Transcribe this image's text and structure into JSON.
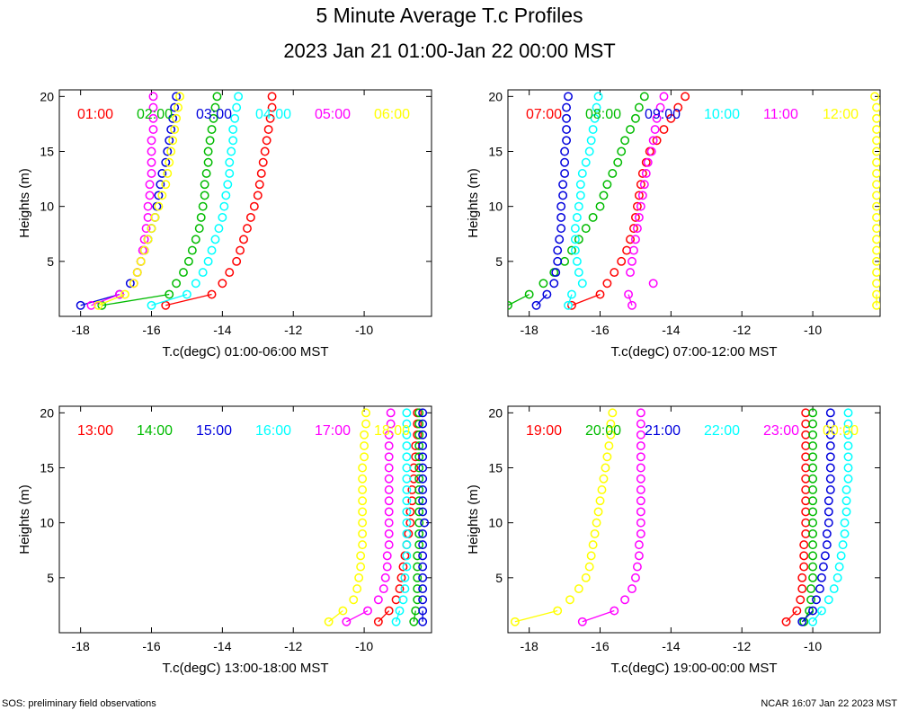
{
  "title": "5 Minute Average T.c Profiles",
  "subtitle": "2023 Jan 21 01:00-Jan 22 00:00 MST",
  "footer_left": "SOS: preliminary field observations",
  "footer_right": "NCAR 16:07 Jan 22 2023 MST",
  "colors": {
    "red": "#ff0000",
    "green": "#00bb00",
    "blue": "#0000dd",
    "cyan": "#00ffff",
    "magenta": "#ff00ff",
    "yellow": "#ffff00"
  },
  "chart_data": [
    {
      "type": "scatter",
      "xlabel": "T.c(degC) 01:00-06:00 MST",
      "ylabel": "Heights (m)",
      "xlim": [
        -18.6,
        -8.1
      ],
      "ylim": [
        0,
        20.6
      ],
      "xticks": [
        "-18",
        "-16",
        "-14",
        "-12",
        "-10"
      ],
      "yticks": [
        "5",
        "10",
        "15",
        "20"
      ],
      "heights": [
        1,
        2,
        3,
        4,
        5,
        6,
        7,
        8,
        9,
        10,
        11,
        12,
        13,
        14,
        15,
        16,
        17,
        18,
        19,
        20
      ],
      "series": [
        {
          "name": "01:00",
          "color": "red",
          "values": [
            -15.6,
            -14.3,
            -14.0,
            -13.8,
            -13.6,
            -13.5,
            -13.4,
            -13.3,
            -13.2,
            -13.1,
            -13.0,
            -12.95,
            -12.9,
            -12.85,
            -12.8,
            -12.75,
            -12.7,
            -12.65,
            -12.6,
            -12.6
          ]
        },
        {
          "name": "02:00",
          "color": "green",
          "values": [
            -17.4,
            -15.5,
            -15.3,
            -15.1,
            -14.95,
            -14.85,
            -14.75,
            -14.65,
            -14.6,
            -14.55,
            -14.5,
            -14.5,
            -14.45,
            -14.4,
            -14.4,
            -14.35,
            -14.3,
            -14.25,
            -14.2,
            -14.15
          ]
        },
        {
          "name": "03:00",
          "color": "blue",
          "values": [
            -18.0,
            -16.9,
            -16.6,
            -16.4,
            -16.3,
            -16.2,
            -16.1,
            -16.0,
            -15.9,
            -15.85,
            -15.8,
            -15.75,
            -15.7,
            -15.6,
            -15.55,
            -15.5,
            -15.45,
            -15.4,
            -15.35,
            -15.3
          ]
        },
        {
          "name": "04:00",
          "color": "cyan",
          "values": [
            -16.0,
            -15.0,
            -14.75,
            -14.55,
            -14.4,
            -14.3,
            -14.2,
            -14.1,
            -14.0,
            -13.95,
            -13.9,
            -13.85,
            -13.8,
            -13.8,
            -13.75,
            -13.7,
            -13.7,
            -13.65,
            -13.6,
            -13.55
          ]
        },
        {
          "name": "05:00",
          "color": "magenta",
          "values": [
            -17.7,
            -16.9,
            -16.5,
            -16.4,
            -16.3,
            -16.25,
            -16.2,
            -16.15,
            -16.1,
            -16.1,
            -16.05,
            -16.05,
            -16.0,
            -16.0,
            -16.0,
            -16.0,
            -15.95,
            -15.95,
            -15.95,
            -15.95
          ]
        },
        {
          "name": "06:00",
          "color": "yellow",
          "values": [
            -17.5,
            -16.75,
            -16.5,
            -16.4,
            -16.3,
            -16.2,
            -16.1,
            -16.0,
            -15.9,
            -15.8,
            -15.7,
            -15.6,
            -15.55,
            -15.5,
            -15.45,
            -15.4,
            -15.35,
            -15.3,
            -15.25,
            -15.2
          ]
        }
      ]
    },
    {
      "type": "scatter",
      "xlabel": "T.c(degC) 07:00-12:00 MST",
      "ylabel": "Heights (m)",
      "xlim": [
        -18.6,
        -8.1
      ],
      "ylim": [
        0,
        20.6
      ],
      "xticks": [
        "-18",
        "-16",
        "-14",
        "-12",
        "-10"
      ],
      "yticks": [
        "5",
        "10",
        "15",
        "20"
      ],
      "heights": [
        1,
        2,
        3,
        4,
        5,
        6,
        7,
        8,
        9,
        10,
        11,
        12,
        13,
        14,
        15,
        16,
        17,
        18,
        19,
        20
      ],
      "series": [
        {
          "name": "07:00",
          "color": "red",
          "values": [
            -16.8,
            -16.0,
            -15.8,
            -15.6,
            -15.4,
            -15.25,
            -15.15,
            -15.05,
            -15.0,
            -14.95,
            -14.9,
            -14.85,
            -14.8,
            -14.7,
            -14.6,
            -14.4,
            -14.2,
            -14.0,
            -13.8,
            -13.6
          ]
        },
        {
          "name": "08:00",
          "color": "green",
          "values": [
            -18.6,
            -18.0,
            -17.6,
            -17.3,
            -17.0,
            -16.8,
            -16.6,
            -16.4,
            -16.2,
            -16.0,
            -15.9,
            -15.8,
            -15.65,
            -15.5,
            -15.4,
            -15.3,
            -15.15,
            -15.0,
            -14.9,
            -14.75
          ]
        },
        {
          "name": "09:00",
          "color": "blue",
          "values": [
            -17.8,
            -17.5,
            -17.3,
            -17.25,
            -17.2,
            -17.2,
            -17.15,
            -17.1,
            -17.1,
            -17.1,
            -17.05,
            -17.05,
            -17.0,
            -17.0,
            -17.0,
            -16.95,
            -16.95,
            -16.95,
            -16.95,
            -16.9
          ]
        },
        {
          "name": "10:00",
          "color": "cyan",
          "values": [
            -16.9,
            -16.8,
            -16.5,
            -16.6,
            -16.65,
            -16.7,
            -16.7,
            -16.7,
            -16.65,
            -16.6,
            -16.55,
            -16.55,
            -16.5,
            -16.4,
            -16.3,
            -16.25,
            -16.2,
            -16.15,
            -16.1,
            -16.05
          ]
        },
        {
          "name": "11:00",
          "color": "magenta",
          "values": [
            -15.1,
            -15.2,
            -14.5,
            -15.15,
            -15.1,
            -15.05,
            -15.0,
            -14.95,
            -14.9,
            -14.85,
            -14.8,
            -14.75,
            -14.7,
            -14.65,
            -14.55,
            -14.5,
            -14.45,
            -14.4,
            -14.3,
            -14.2
          ]
        },
        {
          "name": "12:00",
          "color": "yellow",
          "values": [
            -8.2,
            -8.2,
            -8.2,
            -8.2,
            -8.2,
            -8.2,
            -8.2,
            -8.2,
            -8.2,
            -8.2,
            -8.2,
            -8.2,
            -8.2,
            -8.2,
            -8.2,
            -8.2,
            -8.2,
            -8.2,
            -8.2,
            -8.25
          ]
        }
      ]
    },
    {
      "type": "scatter",
      "xlabel": "T.c(degC) 13:00-18:00 MST",
      "ylabel": "Heights (m)",
      "xlim": [
        -18.6,
        -8.1
      ],
      "ylim": [
        0,
        20.6
      ],
      "xticks": [
        "-18",
        "-16",
        "-14",
        "-12",
        "-10"
      ],
      "yticks": [
        "5",
        "10",
        "15",
        "20"
      ],
      "heights": [
        1,
        2,
        3,
        4,
        5,
        6,
        7,
        8,
        9,
        10,
        11,
        12,
        13,
        14,
        15,
        16,
        17,
        18,
        19,
        20
      ],
      "series": [
        {
          "name": "13:00",
          "color": "red",
          "values": [
            -9.6,
            -9.3,
            -9.1,
            -9.0,
            -8.95,
            -8.9,
            -8.85,
            -8.8,
            -8.75,
            -8.7,
            -8.7,
            -8.65,
            -8.65,
            -8.6,
            -8.6,
            -8.55,
            -8.55,
            -8.5,
            -8.5,
            -8.5
          ]
        },
        {
          "name": "14:00",
          "color": "green",
          "values": [
            -8.6,
            -8.55,
            -8.5,
            -8.5,
            -8.5,
            -8.5,
            -8.5,
            -8.45,
            -8.45,
            -8.45,
            -8.45,
            -8.45,
            -8.45,
            -8.45,
            -8.45,
            -8.45,
            -8.45,
            -8.45,
            -8.45,
            -8.45
          ]
        },
        {
          "name": "15:00",
          "color": "blue",
          "values": [
            -8.35,
            -8.35,
            -8.35,
            -8.35,
            -8.35,
            -8.35,
            -8.35,
            -8.35,
            -8.35,
            -8.3,
            -8.35,
            -8.35,
            -8.35,
            -8.35,
            -8.35,
            -8.35,
            -8.35,
            -8.35,
            -8.35,
            -8.35
          ]
        },
        {
          "name": "16:00",
          "color": "cyan",
          "values": [
            -9.1,
            -9.0,
            -8.9,
            -8.85,
            -8.85,
            -8.8,
            -8.8,
            -8.8,
            -8.8,
            -8.8,
            -8.8,
            -8.8,
            -8.8,
            -8.8,
            -8.8,
            -8.8,
            -8.8,
            -8.8,
            -8.8,
            -8.8
          ]
        },
        {
          "name": "17:00",
          "color": "magenta",
          "values": [
            -10.5,
            -9.9,
            -9.6,
            -9.45,
            -9.4,
            -9.35,
            -9.35,
            -9.3,
            -9.3,
            -9.3,
            -9.3,
            -9.3,
            -9.3,
            -9.3,
            -9.3,
            -9.3,
            -9.3,
            -9.3,
            -9.25,
            -9.25
          ]
        },
        {
          "name": "18:00",
          "color": "yellow",
          "values": [
            -11.0,
            -10.6,
            -10.3,
            -10.2,
            -10.15,
            -10.1,
            -10.1,
            -10.05,
            -10.05,
            -10.05,
            -10.05,
            -10.05,
            -10.05,
            -10.05,
            -10.05,
            -10.0,
            -10.0,
            -10.0,
            -9.95,
            -9.95
          ]
        }
      ]
    },
    {
      "type": "scatter",
      "xlabel": "T.c(degC) 19:00-00:00 MST",
      "ylabel": "Heights (m)",
      "xlim": [
        -18.6,
        -8.1
      ],
      "ylim": [
        0,
        20.6
      ],
      "xticks": [
        "-18",
        "-16",
        "-14",
        "-12",
        "-10"
      ],
      "yticks": [
        "5",
        "10",
        "15",
        "20"
      ],
      "heights": [
        1,
        2,
        3,
        4,
        5,
        6,
        7,
        8,
        9,
        10,
        11,
        12,
        13,
        14,
        15,
        16,
        17,
        18,
        19,
        20
      ],
      "series": [
        {
          "name": "19:00",
          "color": "red",
          "values": [
            -10.75,
            -10.45,
            -10.35,
            -10.3,
            -10.3,
            -10.25,
            -10.25,
            -10.25,
            -10.2,
            -10.2,
            -10.2,
            -10.2,
            -10.2,
            -10.2,
            -10.2,
            -10.2,
            -10.2,
            -10.2,
            -10.2,
            -10.2
          ]
        },
        {
          "name": "20:00",
          "color": "green",
          "values": [
            -10.25,
            -10.1,
            -10.05,
            -10.05,
            -10.0,
            -10.0,
            -10.0,
            -10.0,
            -10.0,
            -10.0,
            -10.0,
            -10.0,
            -10.0,
            -10.0,
            -10.0,
            -10.0,
            -10.0,
            -10.0,
            -10.0,
            -10.0
          ]
        },
        {
          "name": "21:00",
          "color": "blue",
          "values": [
            -10.3,
            -10.0,
            -9.9,
            -9.8,
            -9.75,
            -9.7,
            -9.65,
            -9.6,
            -9.6,
            -9.55,
            -9.55,
            -9.55,
            -9.5,
            -9.5,
            -9.5,
            -9.5,
            -9.5,
            -9.5,
            -9.5,
            -9.5
          ]
        },
        {
          "name": "22:00",
          "color": "cyan",
          "values": [
            -10.0,
            -9.75,
            -9.55,
            -9.4,
            -9.3,
            -9.25,
            -9.2,
            -9.15,
            -9.1,
            -9.1,
            -9.05,
            -9.05,
            -9.05,
            -9.0,
            -9.0,
            -9.0,
            -9.0,
            -9.0,
            -9.0,
            -9.0
          ]
        },
        {
          "name": "23:00",
          "color": "magenta",
          "values": [
            -16.5,
            -15.6,
            -15.3,
            -15.1,
            -15.0,
            -14.95,
            -14.9,
            -14.9,
            -14.85,
            -14.85,
            -14.85,
            -14.85,
            -14.85,
            -14.85,
            -14.85,
            -14.85,
            -14.85,
            -14.85,
            -14.85,
            -14.85
          ]
        },
        {
          "name": "00:00",
          "color": "yellow",
          "values": [
            -18.4,
            -17.2,
            -16.85,
            -16.6,
            -16.4,
            -16.3,
            -16.25,
            -16.2,
            -16.15,
            -16.1,
            -16.05,
            -16.0,
            -15.95,
            -15.9,
            -15.85,
            -15.8,
            -15.75,
            -15.7,
            -15.7,
            -15.65
          ]
        }
      ]
    }
  ]
}
